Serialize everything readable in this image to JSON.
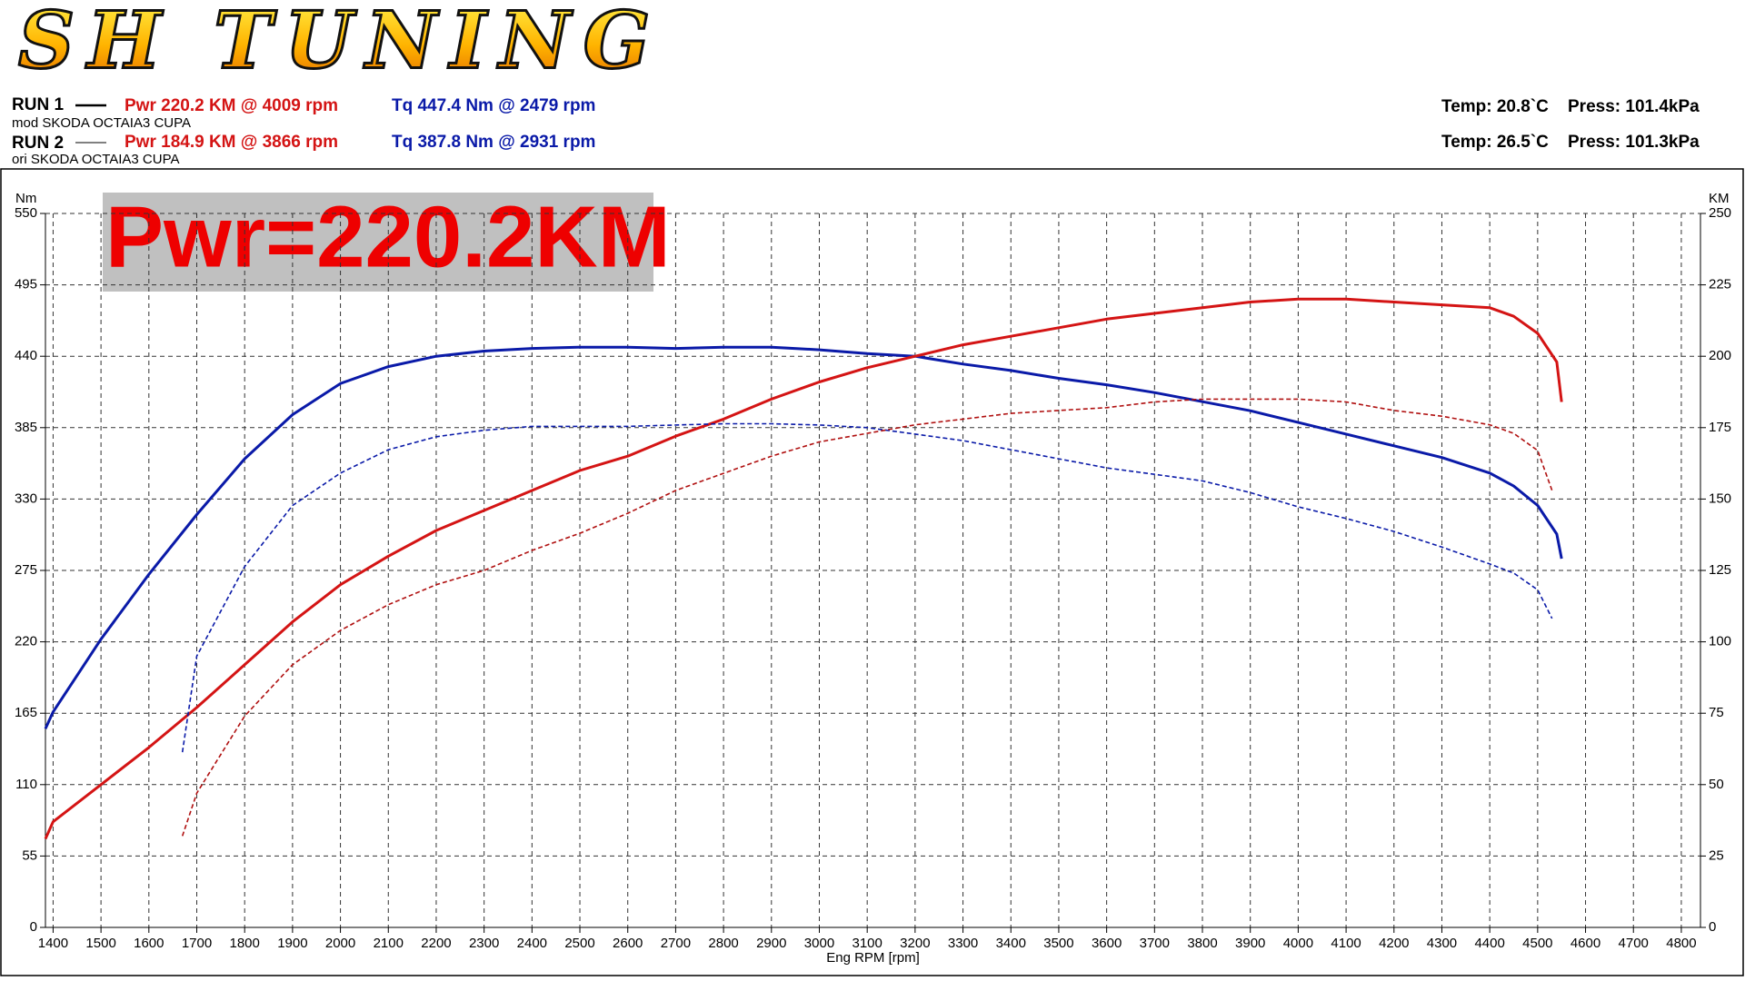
{
  "logo": "SH TUNING",
  "header": {
    "runs": [
      {
        "label": "RUN 1",
        "power": "Pwr  220.2 KM @ 4009 rpm",
        "torque": "Tq 447.4 Nm @ 2479 rpm",
        "vehicle": "mod SKODA OCTAIA3 CUPA",
        "temp": "Temp: 20.8`C",
        "press": "Press: 101.4kPa"
      },
      {
        "label": "RUN 2",
        "power": "Pwr  184.9 KM @ 3866 rpm",
        "torque": "Tq 387.8 Nm @ 2931 rpm",
        "vehicle": "ori SKODA OCTAIA3 CUPA",
        "temp": "Temp: 26.5`C",
        "press": "Press: 101.3kPa"
      }
    ]
  },
  "chart_data": {
    "type": "line",
    "annotation": "Pwr=220.2KM",
    "x_label": "Eng RPM [rpm]",
    "y_label": "Nm",
    "y2_label": "KM",
    "grid": true,
    "xlim": [
      1384,
      4840
    ],
    "xticks": [
      1400,
      1500,
      1600,
      1700,
      1800,
      1900,
      2000,
      2100,
      2200,
      2300,
      2400,
      2500,
      2600,
      2700,
      2800,
      2900,
      3000,
      3100,
      3200,
      3300,
      3400,
      3500,
      3600,
      3700,
      3800,
      3900,
      4000,
      4100,
      4200,
      4300,
      4400,
      4500,
      4600,
      4700,
      4800
    ],
    "ylim": [
      0,
      550
    ],
    "yticks": [
      0,
      55,
      110,
      165,
      220,
      275,
      330,
      385,
      440,
      495,
      550
    ],
    "y2lim": [
      0,
      250
    ],
    "y2ticks": [
      0,
      25,
      50,
      75,
      100,
      125,
      150,
      175,
      200,
      225,
      250
    ],
    "series": [
      {
        "name": "RUN 1 Tq",
        "color": "#0a1aa8",
        "line_style": "solid",
        "x": [
          1384,
          1400,
          1500,
          1600,
          1700,
          1800,
          1900,
          2000,
          2100,
          2200,
          2300,
          2400,
          2500,
          2600,
          2700,
          2800,
          2900,
          3000,
          3100,
          3200,
          3300,
          3400,
          3500,
          3600,
          3700,
          3800,
          3900,
          4000,
          4100,
          4200,
          4300,
          4400,
          4450,
          4500,
          4540,
          4550
        ],
        "values": [
          153,
          166,
          222,
          272,
          318,
          361,
          395,
          419,
          432,
          440,
          444,
          446,
          447,
          447,
          446,
          447,
          447,
          445,
          442,
          440,
          434,
          429,
          423,
          418,
          412,
          405,
          398,
          389,
          380,
          371,
          362,
          350,
          340,
          325,
          303,
          284
        ]
      },
      {
        "name": "RUN 1 Pwr",
        "color": "#d41414",
        "line_style": "solid",
        "axis": "y2",
        "x": [
          1384,
          1400,
          1500,
          1600,
          1700,
          1800,
          1900,
          2000,
          2100,
          2200,
          2300,
          2400,
          2500,
          2600,
          2700,
          2800,
          2900,
          3000,
          3100,
          3200,
          3300,
          3400,
          3500,
          3600,
          3700,
          3800,
          3900,
          4000,
          4100,
          4200,
          4300,
          4400,
          4450,
          4500,
          4540,
          4550
        ],
        "values": [
          31,
          37,
          50,
          63,
          77,
          92,
          107,
          120,
          130,
          139,
          146,
          153,
          160,
          165,
          172,
          178,
          185,
          191,
          196,
          200,
          204,
          207,
          210,
          213,
          215,
          217,
          219,
          220,
          220,
          219,
          218,
          217,
          214,
          208,
          198,
          184
        ]
      },
      {
        "name": "RUN 2 Tq",
        "color": "#0a1aa8",
        "line_style": "dashed",
        "x": [
          1670,
          1700,
          1800,
          1900,
          2000,
          2100,
          2200,
          2300,
          2400,
          2500,
          2600,
          2700,
          2800,
          2900,
          3000,
          3100,
          3200,
          3300,
          3400,
          3500,
          3600,
          3700,
          3800,
          3900,
          4000,
          4100,
          4200,
          4300,
          4400,
          4450,
          4500,
          4530
        ],
        "values": [
          135,
          209,
          278,
          325,
          350,
          368,
          378,
          383,
          386,
          386,
          386,
          387,
          388,
          388,
          387,
          385,
          380,
          375,
          368,
          361,
          354,
          349,
          344,
          335,
          324,
          315,
          305,
          293,
          280,
          273,
          260,
          238
        ]
      },
      {
        "name": "RUN 2 Pwr",
        "color": "#b01010",
        "line_style": "dashed",
        "axis": "y2",
        "x": [
          1670,
          1700,
          1800,
          1900,
          2000,
          2100,
          2200,
          2300,
          2400,
          2500,
          2600,
          2700,
          2800,
          2900,
          3000,
          3100,
          3200,
          3300,
          3400,
          3500,
          3600,
          3700,
          3800,
          3900,
          4000,
          4100,
          4200,
          4300,
          4400,
          4450,
          4500,
          4530
        ],
        "values": [
          32,
          47,
          74,
          92,
          104,
          113,
          120,
          125,
          132,
          138,
          145,
          153,
          159,
          165,
          170,
          173,
          176,
          178,
          180,
          181,
          182,
          184,
          185,
          185,
          185,
          184,
          181,
          179,
          176,
          173,
          167,
          153
        ]
      }
    ]
  }
}
